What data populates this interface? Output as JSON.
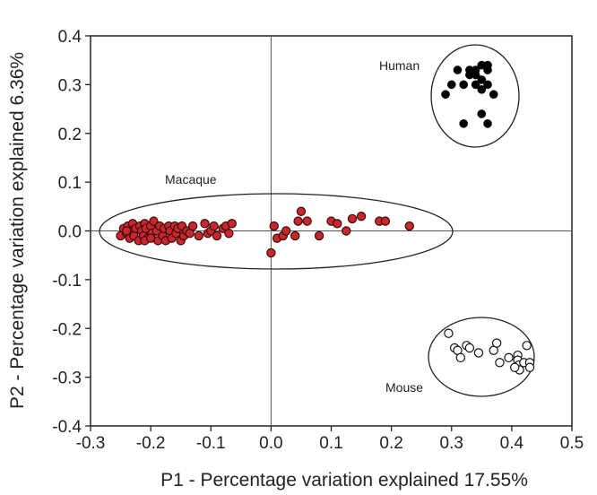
{
  "chart_data": {
    "type": "scatter",
    "xlabel": "P1 - Percentage variation explained 17.55%",
    "ylabel": "P2 - Percentage variation explained 6.36%",
    "xlim": [
      -0.3,
      0.5
    ],
    "ylim": [
      -0.4,
      0.4
    ],
    "xticks": [
      -0.3,
      -0.2,
      -0.1,
      0.0,
      0.1,
      0.2,
      0.3,
      0.4,
      0.5
    ],
    "yticks": [
      -0.4,
      -0.3,
      -0.2,
      -0.1,
      0.0,
      0.1,
      0.2,
      0.3,
      0.4
    ],
    "xtick_labels": [
      "-0.3",
      "-0.2",
      "-0.1",
      "0.0",
      "0.1",
      "0.2",
      "0.3",
      "0.4",
      "0.5"
    ],
    "ytick_labels": [
      "-0.4",
      "-0.3",
      "-0.2",
      "-0.1",
      "0.0",
      "0.1",
      "0.2",
      "0.3",
      "0.4"
    ],
    "grid": false,
    "zero_lines": true,
    "annotations": [
      "Human",
      "Macaque",
      "Mouse"
    ],
    "series": [
      {
        "color": "#000000",
        "marker": "filled-black-circle",
        "points": [
          [
            0.33,
            0.33
          ],
          [
            0.34,
            0.33
          ],
          [
            0.35,
            0.34
          ],
          [
            0.36,
            0.34
          ],
          [
            0.36,
            0.33
          ],
          [
            0.34,
            0.32
          ],
          [
            0.35,
            0.31
          ],
          [
            0.36,
            0.3
          ],
          [
            0.34,
            0.3
          ],
          [
            0.33,
            0.32
          ],
          [
            0.32,
            0.3
          ],
          [
            0.3,
            0.3
          ],
          [
            0.29,
            0.28
          ],
          [
            0.35,
            0.29
          ],
          [
            0.37,
            0.28
          ],
          [
            0.31,
            0.33
          ],
          [
            0.35,
            0.24
          ],
          [
            0.36,
            0.22
          ],
          [
            0.32,
            0.22
          ]
        ]
      },
      {
        "color": "#c8282d",
        "marker": "red-circle-with-dark-edge",
        "points": [
          [
            -0.25,
            -0.01
          ],
          [
            -0.245,
            0.005
          ],
          [
            -0.24,
            -0.005
          ],
          [
            -0.238,
            0.01
          ],
          [
            -0.235,
            -0.015
          ],
          [
            -0.232,
            0.0
          ],
          [
            -0.23,
            0.015
          ],
          [
            -0.228,
            -0.01
          ],
          [
            -0.225,
            0.005
          ],
          [
            -0.22,
            -0.02
          ],
          [
            -0.218,
            0.01
          ],
          [
            -0.215,
            0.0
          ],
          [
            -0.212,
            -0.01
          ],
          [
            -0.21,
            0.015
          ],
          [
            -0.208,
            0.005
          ],
          [
            -0.205,
            -0.015
          ],
          [
            -0.2,
            0.01
          ],
          [
            -0.198,
            -0.005
          ],
          [
            -0.195,
            0.02
          ],
          [
            -0.19,
            0.0
          ],
          [
            -0.188,
            -0.02
          ],
          [
            -0.185,
            0.01
          ],
          [
            -0.18,
            -0.01
          ],
          [
            -0.178,
            0.005
          ],
          [
            -0.175,
            -0.02
          ],
          [
            -0.17,
            0.01
          ],
          [
            -0.168,
            0.0
          ],
          [
            -0.165,
            -0.015
          ],
          [
            -0.16,
            0.01
          ],
          [
            -0.158,
            -0.005
          ],
          [
            -0.155,
            0.005
          ],
          [
            -0.15,
            -0.02
          ],
          [
            -0.148,
            0.01
          ],
          [
            -0.145,
            -0.01
          ],
          [
            -0.14,
            0.0
          ],
          [
            -0.135,
            -0.005
          ],
          [
            -0.13,
            0.01
          ],
          [
            -0.12,
            -0.01
          ],
          [
            -0.11,
            0.015
          ],
          [
            -0.105,
            -0.005
          ],
          [
            -0.1,
            0.0
          ],
          [
            -0.095,
            0.01
          ],
          [
            -0.09,
            -0.01
          ],
          [
            -0.08,
            0.005
          ],
          [
            -0.075,
            0.01
          ],
          [
            -0.07,
            -0.005
          ],
          [
            -0.065,
            0.015
          ],
          [
            -0.21,
            -0.02
          ],
          [
            -0.24,
            0.0
          ],
          [
            -0.2,
            -0.015
          ],
          [
            0.0,
            -0.045
          ],
          [
            0.005,
            0.01
          ],
          [
            0.01,
            -0.015
          ],
          [
            0.02,
            -0.01
          ],
          [
            0.025,
            0.0
          ],
          [
            0.045,
            0.02
          ],
          [
            0.05,
            0.04
          ],
          [
            0.06,
            0.02
          ],
          [
            0.08,
            -0.01
          ],
          [
            0.1,
            0.02
          ],
          [
            0.11,
            0.015
          ],
          [
            0.125,
            0.0
          ],
          [
            0.135,
            0.025
          ],
          [
            0.15,
            0.03
          ],
          [
            0.18,
            0.02
          ],
          [
            0.19,
            0.02
          ],
          [
            0.23,
            0.01
          ],
          [
            0.04,
            -0.01
          ]
        ]
      },
      {
        "color": "#ffffff",
        "marker": "open-circle",
        "points": [
          [
            0.295,
            -0.21
          ],
          [
            0.305,
            -0.24
          ],
          [
            0.31,
            -0.245
          ],
          [
            0.315,
            -0.26
          ],
          [
            0.325,
            -0.235
          ],
          [
            0.33,
            -0.24
          ],
          [
            0.345,
            -0.25
          ],
          [
            0.37,
            -0.245
          ],
          [
            0.375,
            -0.23
          ],
          [
            0.38,
            -0.27
          ],
          [
            0.395,
            -0.26
          ],
          [
            0.41,
            -0.255
          ],
          [
            0.41,
            -0.265
          ],
          [
            0.412,
            -0.275
          ],
          [
            0.413,
            -0.285
          ],
          [
            0.42,
            -0.27
          ],
          [
            0.425,
            -0.235
          ],
          [
            0.43,
            -0.27
          ],
          [
            0.43,
            -0.28
          ],
          [
            0.405,
            -0.28
          ]
        ]
      }
    ]
  }
}
